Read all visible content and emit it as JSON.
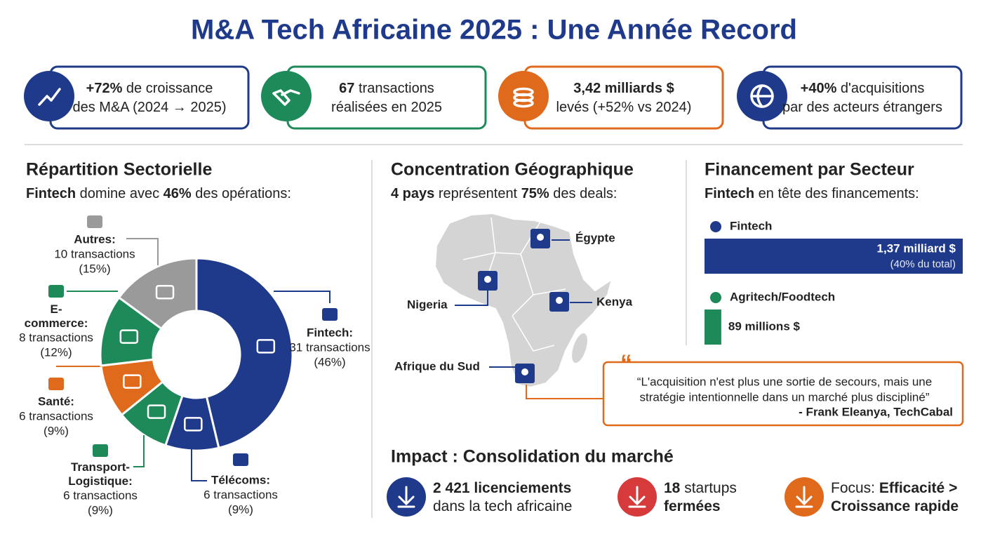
{
  "title": "M&A Tech Africaine 2025 : Une Année Record",
  "kpis": [
    {
      "color": "#1f3a8a",
      "lines": [
        [
          {
            "text": "+72%",
            "bold": true
          },
          {
            "text": " de croissance"
          }
        ],
        [
          {
            "text": "des M&A (2024 → 2025)"
          }
        ]
      ]
    },
    {
      "color": "#1e8a5a",
      "lines": [
        [
          {
            "text": "67",
            "bold": true
          },
          {
            "text": " transactions"
          }
        ],
        [
          {
            "text": "réalisées en 2025"
          }
        ]
      ]
    },
    {
      "color": "#e06a1c",
      "lines": [
        [
          {
            "text": "3,42 milliards $",
            "bold": true
          }
        ],
        [
          {
            "text": "levés (+52% vs 2024)"
          }
        ]
      ]
    },
    {
      "color": "#1f3a8a",
      "lines": [
        [
          {
            "text": "+40%",
            "bold": true
          },
          {
            "text": " d'acquisitions"
          }
        ],
        [
          {
            "text": "par des acteurs étrangers"
          }
        ]
      ]
    }
  ],
  "sectors": {
    "title": "Répartition Sectorielle",
    "subtitle": [
      {
        "text": "Fintech",
        "bold": true
      },
      {
        "text": " domine avec "
      },
      {
        "text": "46%",
        "bold": true
      },
      {
        "text": " des opérations:"
      }
    ]
  },
  "geo": {
    "title": "Concentration Géographique",
    "subtitle": [
      {
        "text": "4 pays",
        "bold": true
      },
      {
        "text": " représentent "
      },
      {
        "text": "75%",
        "bold": true
      },
      {
        "text": " des deals:"
      }
    ],
    "countries": [
      "Égypte",
      "Nigeria",
      "Kenya",
      "Afrique du Sud"
    ],
    "quote": {
      "lines": [
        "“L'acquisition n'est plus une sortie de secours, mais une",
        "stratégie intentionnelle dans un marché plus discipliné”"
      ],
      "source": "- Frank Eleanya, TechCabal"
    }
  },
  "funding": {
    "title": "Financement par Secteur",
    "subtitle": [
      {
        "text": "Fintech",
        "bold": true
      },
      {
        "text": " en tête des financements:"
      }
    ]
  },
  "impact": {
    "title": "Impact : Consolidation du marché",
    "items": [
      {
        "color": "#1f3a8a",
        "lines": [
          [
            {
              "text": "2 421 licenciements",
              "bold": true
            }
          ],
          [
            {
              "text": "dans la tech africaine"
            }
          ]
        ]
      },
      {
        "color": "#d63a3a",
        "lines": [
          [
            {
              "text": "18",
              "bold": true
            },
            {
              "text": " startups"
            }
          ],
          [
            {
              "text": "fermées",
              "bold": true
            }
          ]
        ]
      },
      {
        "color": "#e06a1c",
        "lines": [
          [
            {
              "text": "Focus: "
            },
            {
              "text": "Efficacité >",
              "bold": true
            }
          ],
          [
            {
              "text": "Croissance rapide",
              "bold": true
            }
          ]
        ]
      }
    ]
  },
  "chart_data": [
    {
      "type": "pie",
      "categories": [
        "Fintech:",
        "Télécoms:",
        "Transport-Logistique:",
        "Santé:",
        "E-commerce:",
        "Autres:"
      ],
      "values": [
        31,
        6,
        6,
        6,
        8,
        10
      ],
      "value_labels": [
        "31 transactions",
        "6 transactions",
        "6 transactions",
        "6 transactions",
        "8 transactions",
        "10 transactions"
      ],
      "percent_labels": [
        "(46%)",
        "(9%)",
        "(9%)",
        "(9%)",
        "(12%)",
        "(15%)"
      ],
      "colors": [
        "#1f3a8a",
        "#1f3a8a",
        "#1e8a5a",
        "#e06a1c",
        "#1e8a5a",
        "#9a9a9a"
      ]
    },
    {
      "type": "bar",
      "orientation": "horizontal",
      "categories": [
        "Fintech",
        "Agritech/Foodtech"
      ],
      "values": [
        1370,
        89
      ],
      "value_labels": [
        "1,37 milliard $",
        "89 millions $"
      ],
      "notes": [
        "(40% du total)"
      ],
      "colors": [
        "#1f3a8a",
        "#1e8a5a"
      ]
    }
  ]
}
